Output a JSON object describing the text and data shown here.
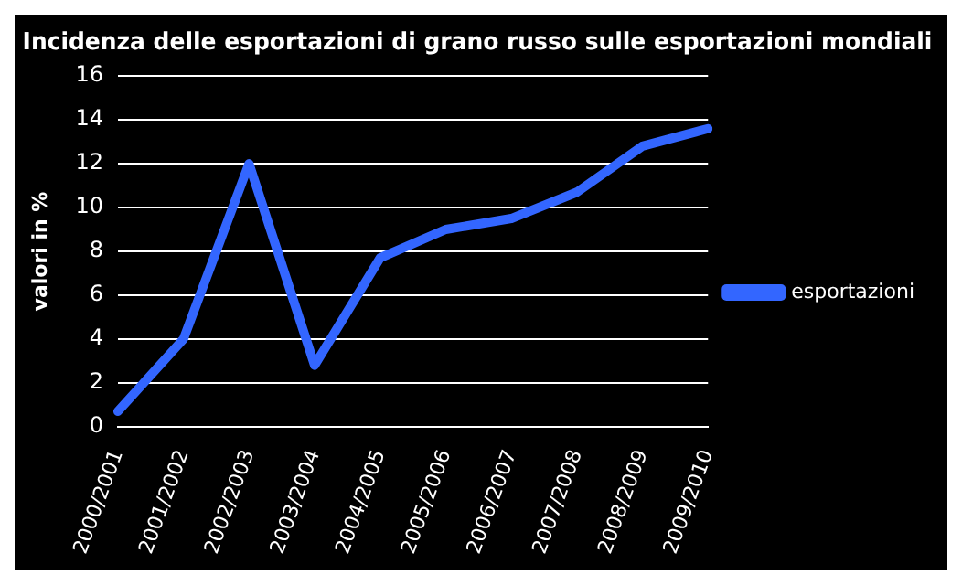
{
  "chart_data": {
    "type": "line",
    "title": "Incidenza delle esportazioni di grano russo sulle esportazioni mondiali",
    "ylabel": "valori in %",
    "categories": [
      "2000/2001",
      "2001/2002",
      "2002/2003",
      "2003/2004",
      "2004/2005",
      "2005/2006",
      "2006/2007",
      "2007/2008",
      "2008/2009",
      "2009/2010"
    ],
    "series": [
      {
        "name": "esportazioni",
        "color": "#3366ff",
        "values": [
          0.7,
          4.0,
          12.0,
          2.8,
          7.7,
          9.0,
          9.5,
          10.7,
          12.8,
          13.6
        ]
      }
    ],
    "ylim": [
      0,
      16
    ],
    "yticks": [
      0,
      2,
      4,
      6,
      8,
      10,
      12,
      14,
      16
    ],
    "grid": "y",
    "legend": "right",
    "marker": "none"
  }
}
